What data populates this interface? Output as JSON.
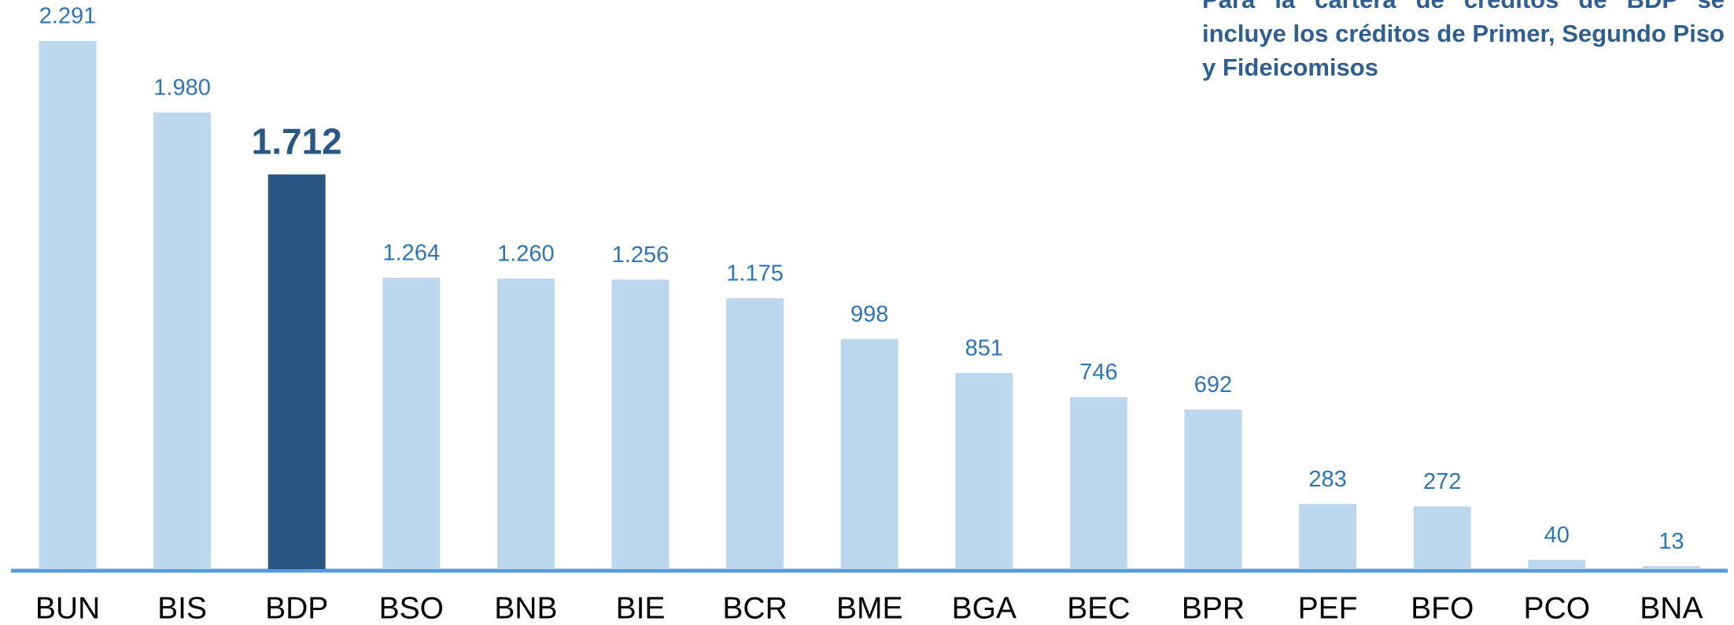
{
  "chart_data": {
    "type": "bar",
    "annotation": "Para la cartera de créditos de BDP se incluye los créditos de Primer, Segundo Piso y Fideicomisos",
    "categories": [
      "BUN",
      "BIS",
      "BDP",
      "BSO",
      "BNB",
      "BIE",
      "BCR",
      "BME",
      "BGA",
      "BEC",
      "BPR",
      "PEF",
      "BFO",
      "PCO",
      "BNA"
    ],
    "values": [
      2291,
      1980,
      1712,
      1264,
      1260,
      1256,
      1175,
      998,
      851,
      746,
      692,
      283,
      272,
      40,
      13
    ],
    "value_labels": [
      "2.291",
      "1.980",
      "1.712",
      "1.264",
      "1.260",
      "1.256",
      "1.175",
      "998",
      "851",
      "746",
      "692",
      "283",
      "272",
      "40",
      "13"
    ],
    "colors": [
      "#bdd7ee",
      "#bdd7ee",
      "#2a5783",
      "#bdd7ee",
      "#bdd7ee",
      "#bdd7ee",
      "#bdd7ee",
      "#bdd7ee",
      "#bdd7ee",
      "#bdd7ee",
      "#bdd7ee",
      "#bdd7ee",
      "#bdd7ee",
      "#bdd7ee",
      "#bdd7ee"
    ],
    "grid": false
  }
}
